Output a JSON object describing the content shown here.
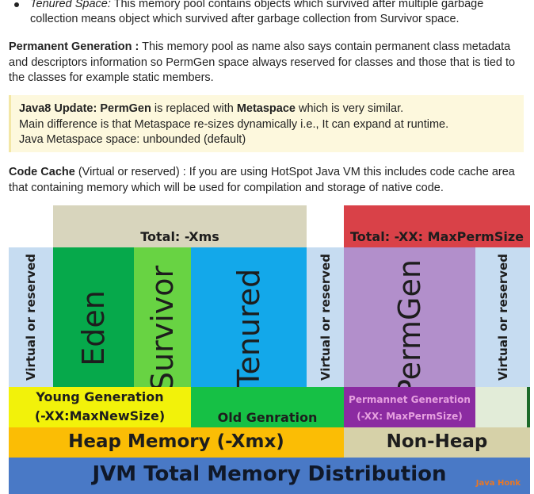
{
  "bullet": {
    "term": "Tenured Space:",
    "text": " This memory pool contains objects which survived after multiple garbage collection means object which survived after garbage collection from Survivor space."
  },
  "permgen_paragraph": {
    "term": "Permanent Generation :",
    "text": " This memory pool as name also says contain permanent class metadata and descriptors information so PermGen space always reserved for classes and those that is tied to the classes for example static members."
  },
  "note": {
    "line1_a": "Java8 Update: PermGen",
    "line1_b": " is replaced with ",
    "line1_c": "Metaspace",
    "line1_d": " which is very similar.",
    "line2": "Main difference is that Metaspace re-sizes dynamically i.e., It can expand at runtime.",
    "line3": "Java Metaspace space: unbounded (default)"
  },
  "codecache_paragraph": {
    "term": "Code Cache",
    "text": " (Virtual or reserved) : If you are using HotSpot Java VM this includes code cache area that containing memory which will be used for compilation and storage of native code."
  },
  "diagram": {
    "total_xms": "Total: -Xms",
    "total_permsize": "Total: -XX: MaxPermSize",
    "virtual_reserved": "Virtual or reserved",
    "eden": "Eden",
    "survivor": "Survivor",
    "tenured": "Tenured",
    "permgen": "PermGen",
    "young_generation": "Young Generation",
    "young_flag": "(-XX:MaxNewSize)",
    "old_generation": "Old Genration",
    "permanent_generation": "Permannet Generation",
    "permanent_flag": "(-XX: MaxPermSize)",
    "heap_memory": "Heap Memory (-Xmx)",
    "non_heap": "Non-Heap",
    "jvm_total": "JVM Total Memory Distribution",
    "watermark": "Java Honk"
  },
  "colors": {
    "gray_header": "#d8d5bd",
    "red_header": "#d94148",
    "virtual_blue": "#c6dcf1",
    "eden_green": "#06a94b",
    "survivor_green": "#68d343",
    "tenured_blue": "#13a8ea",
    "permgen_purple": "#b28fcb",
    "young_yellow": "#f2f20a",
    "old_green": "#16c045",
    "perm_purple": "#8b2ba1",
    "heap_orange": "#fbbd05",
    "nonheap_tan": "#d6d1a8",
    "jvm_blue": "#4979c6",
    "watermark_orange": "#e97724"
  }
}
